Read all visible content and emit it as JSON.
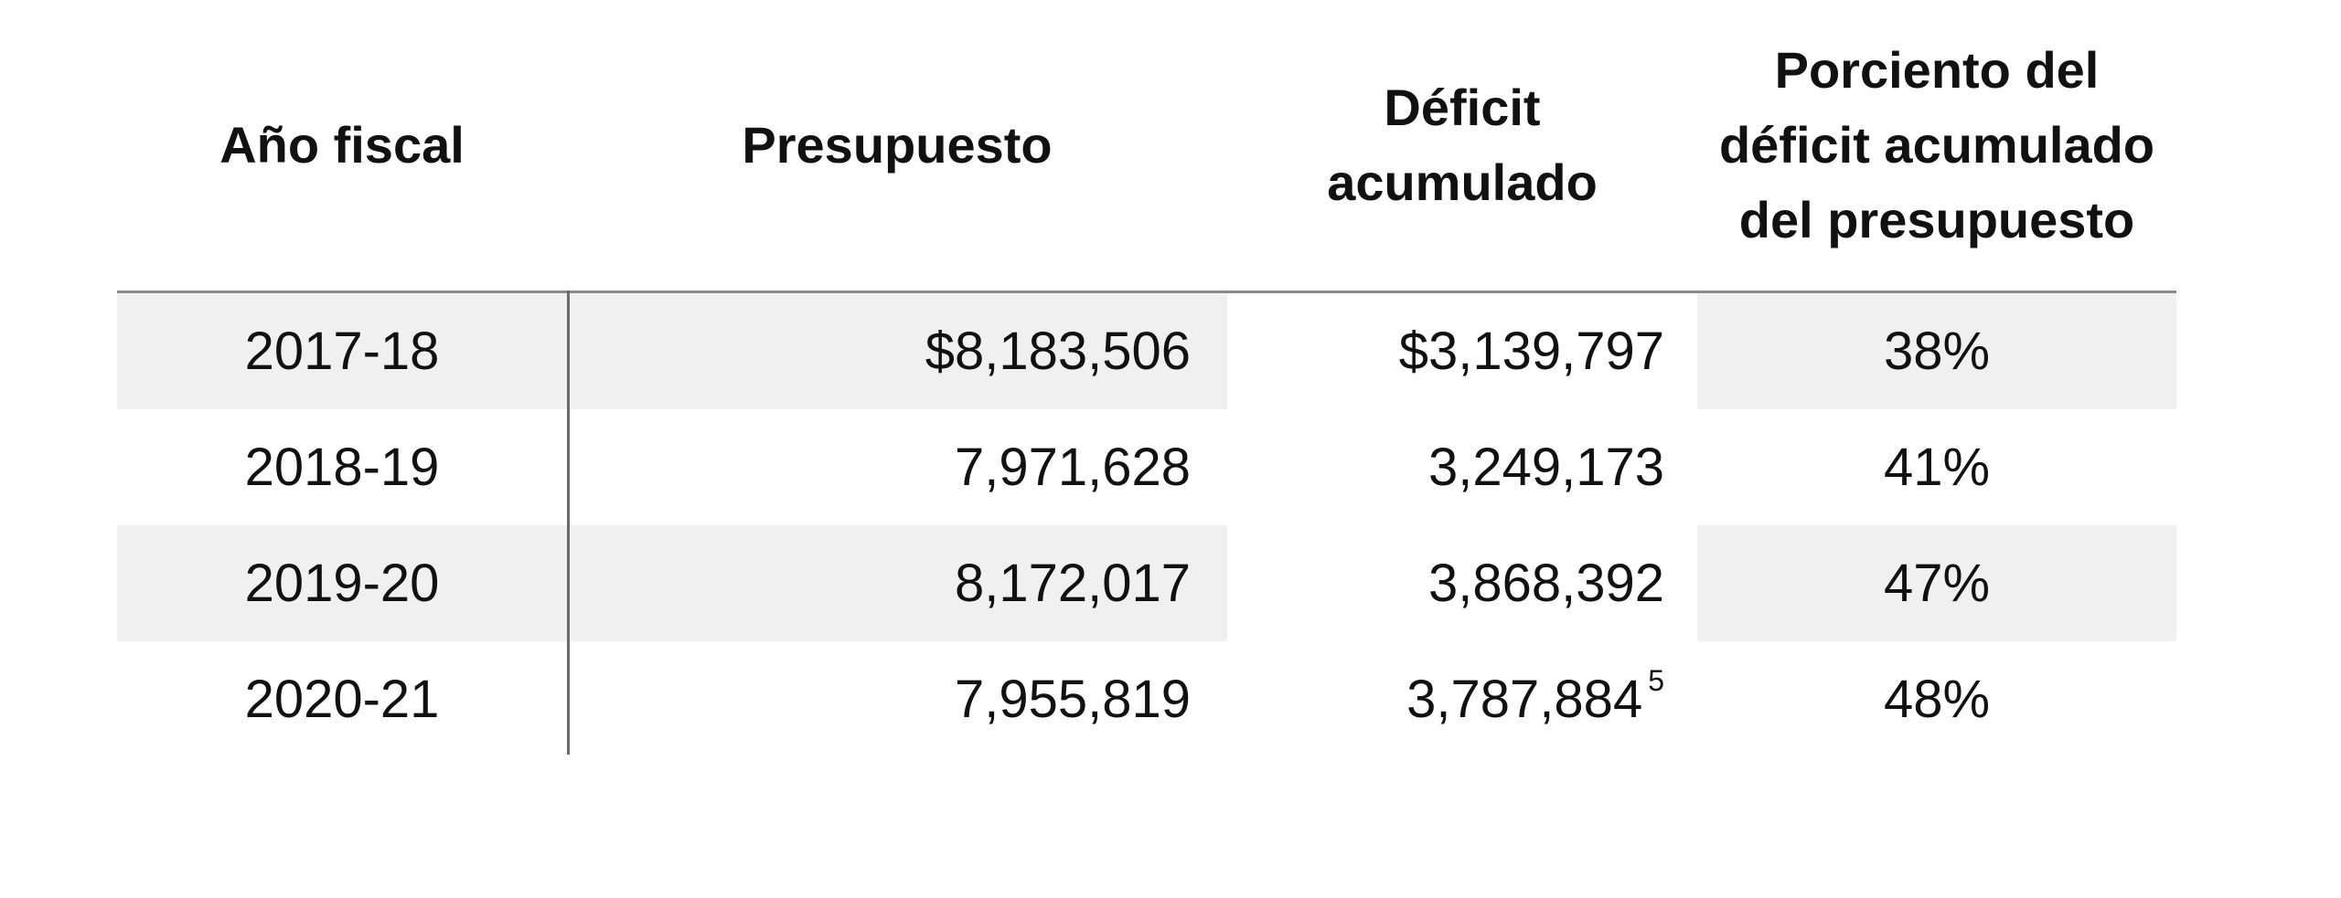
{
  "table": {
    "headers": {
      "year": "Año fiscal",
      "budget": "Presupuesto",
      "deficit": "Déficit\nacumulado",
      "percent": "Porciento del\ndéficit acumulado\ndel presupuesto"
    },
    "rows": [
      {
        "year": "2017-18",
        "budget": "$8,183,506",
        "deficit": "$3,139,797",
        "footnote": "",
        "percent": "38%"
      },
      {
        "year": "2018-19",
        "budget": "7,971,628",
        "deficit": "3,249,173",
        "footnote": "",
        "percent": "41%"
      },
      {
        "year": "2019-20",
        "budget": "8,172,017",
        "deficit": "3,868,392",
        "footnote": "",
        "percent": "47%"
      },
      {
        "year": "2020-21",
        "budget": "7,955,819",
        "deficit": "3,787,884",
        "footnote": "5",
        "percent": "48%"
      }
    ]
  }
}
